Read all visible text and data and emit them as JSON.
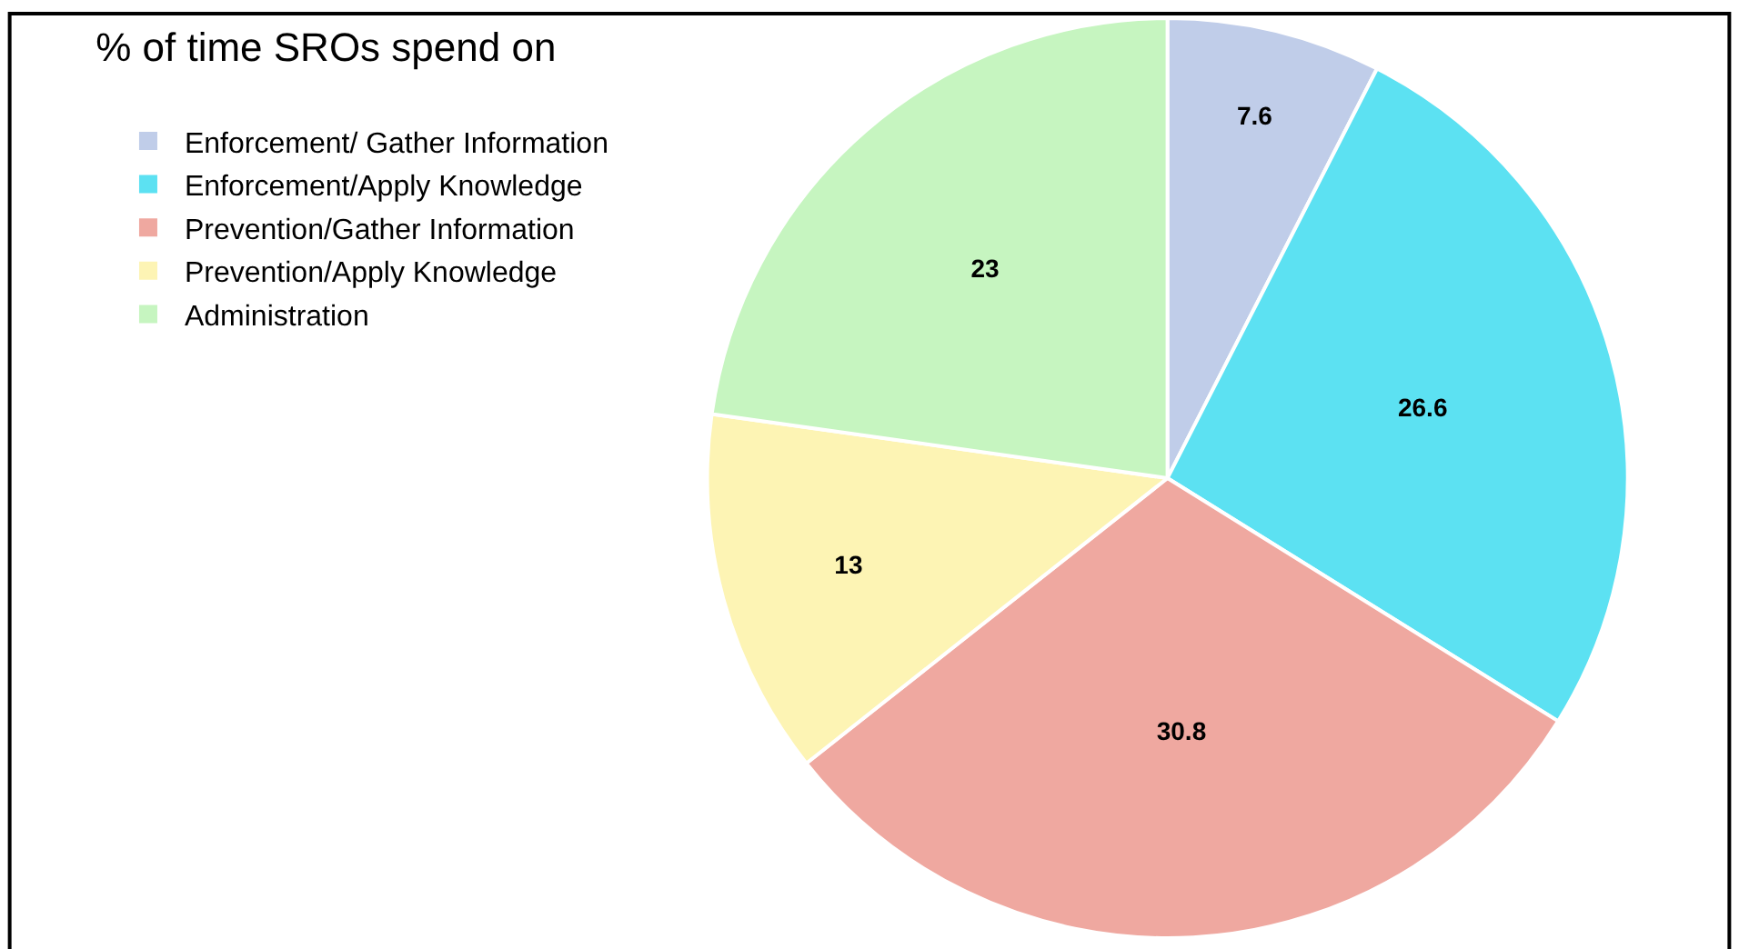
{
  "chart_data": {
    "type": "pie",
    "title": "% of time SROs spend on",
    "categories": [
      "Enforcement/ Gather Information",
      "Enforcement/Apply Knowledge",
      "Prevention/Gather Information",
      "Prevention/Apply Knowledge",
      "Administration"
    ],
    "values": [
      7.6,
      26.6,
      30.8,
      13,
      23
    ],
    "colors": [
      "#c0cde9",
      "#5ce1f2",
      "#efa8a0",
      "#fdf4b4",
      "#c6f5c0"
    ],
    "data_labels": true,
    "legend": "top left"
  }
}
